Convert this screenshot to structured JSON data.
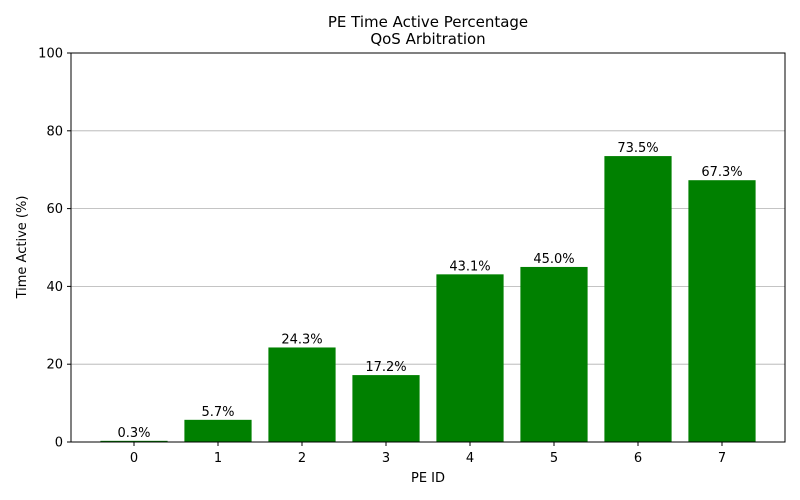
{
  "chart_data": {
    "type": "bar",
    "title": "PE Time Active Percentage",
    "subtitle": "QoS Arbitration",
    "xlabel": "PE ID",
    "ylabel": "Time Active (%)",
    "categories": [
      "0",
      "1",
      "2",
      "3",
      "4",
      "5",
      "6",
      "7"
    ],
    "values": [
      0.3,
      5.7,
      24.3,
      17.2,
      43.1,
      45.0,
      73.5,
      67.3
    ],
    "data_labels": [
      "0.3%",
      "5.7%",
      "24.3%",
      "17.2%",
      "43.1%",
      "45.0%",
      "73.5%",
      "67.3%"
    ],
    "ylim": [
      0,
      100
    ],
    "yticks": [
      0,
      20,
      40,
      60,
      80,
      100
    ],
    "grid": "y-axis horizontal lines",
    "bar_color": "#008000",
    "grid_color": "#b0b0b0"
  }
}
